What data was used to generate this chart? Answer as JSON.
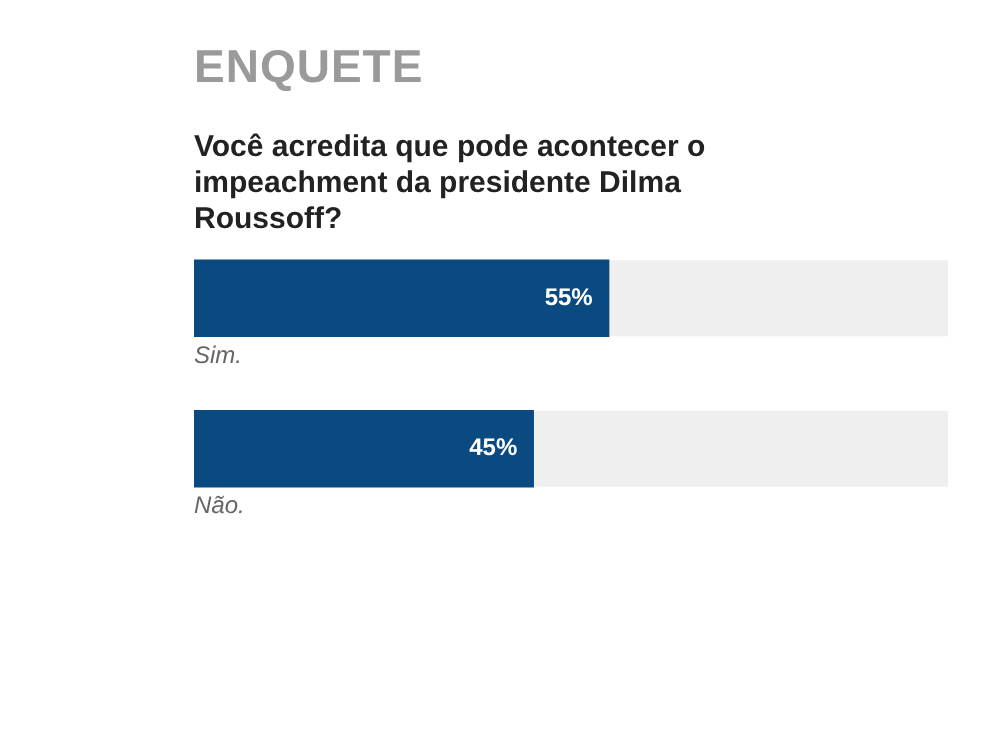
{
  "chart_data": {
    "type": "bar",
    "orientation": "horizontal",
    "title": "ENQUETE",
    "subtitle": "Você acredita que pode acontecer o impeachment da presidente Dilma Roussoff?",
    "categories": [
      "Sim.",
      "Não."
    ],
    "values": [
      55,
      45
    ],
    "color": "#0b4a80",
    "value_labels": [
      "55%",
      "45%"
    ],
    "xlim": [
      0,
      100
    ],
    "tick_labels": "y"
  }
}
